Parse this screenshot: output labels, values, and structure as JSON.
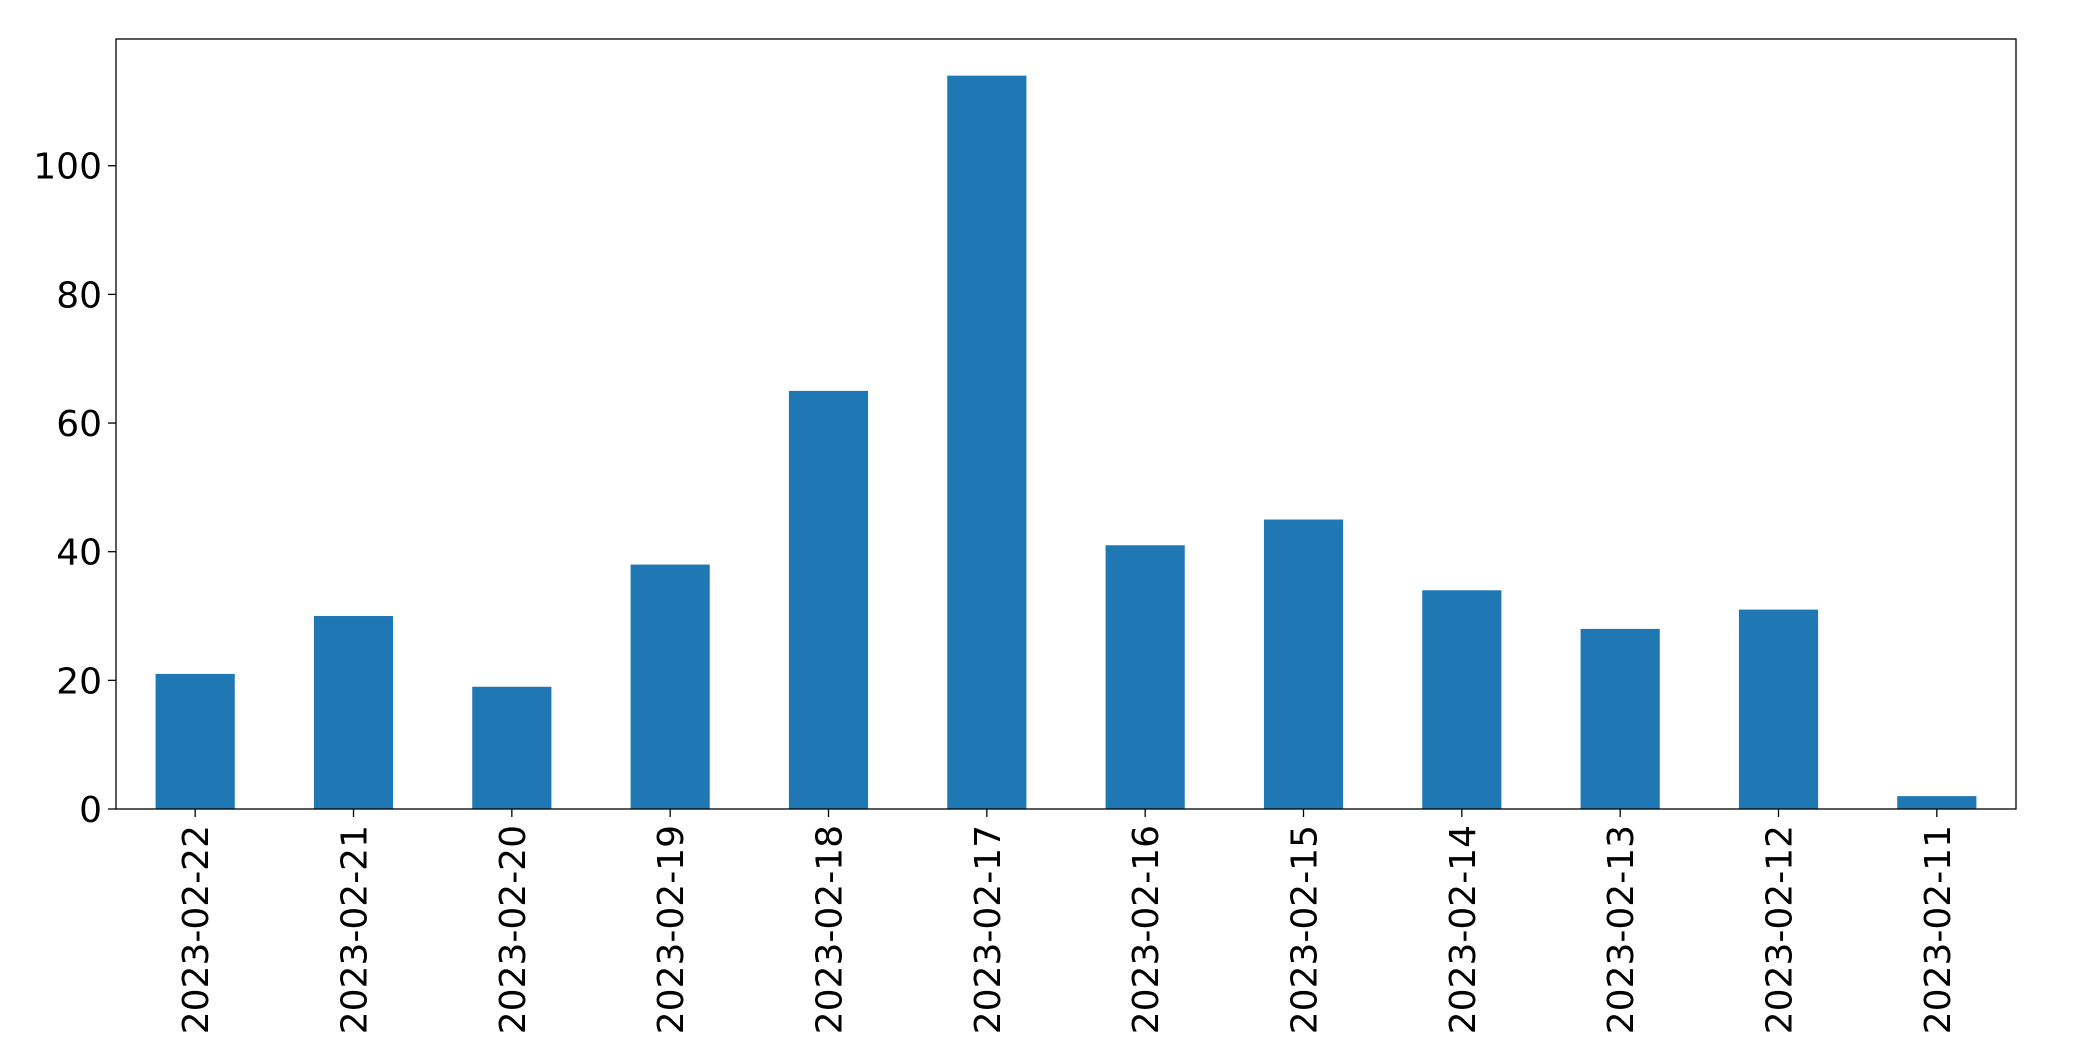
{
  "chart_data": {
    "type": "bar",
    "categories": [
      "2023-02-22",
      "2023-02-21",
      "2023-02-20",
      "2023-02-19",
      "2023-02-18",
      "2023-02-17",
      "2023-02-16",
      "2023-02-15",
      "2023-02-14",
      "2023-02-13",
      "2023-02-12",
      "2023-02-11"
    ],
    "values": [
      21,
      30,
      19,
      38,
      65,
      114,
      41,
      45,
      34,
      28,
      31,
      2
    ],
    "color": "#1f77b4",
    "ylim": [
      0,
      119.7
    ],
    "yticks": [
      0,
      20,
      40,
      60,
      80,
      100
    ],
    "grid": false
  }
}
